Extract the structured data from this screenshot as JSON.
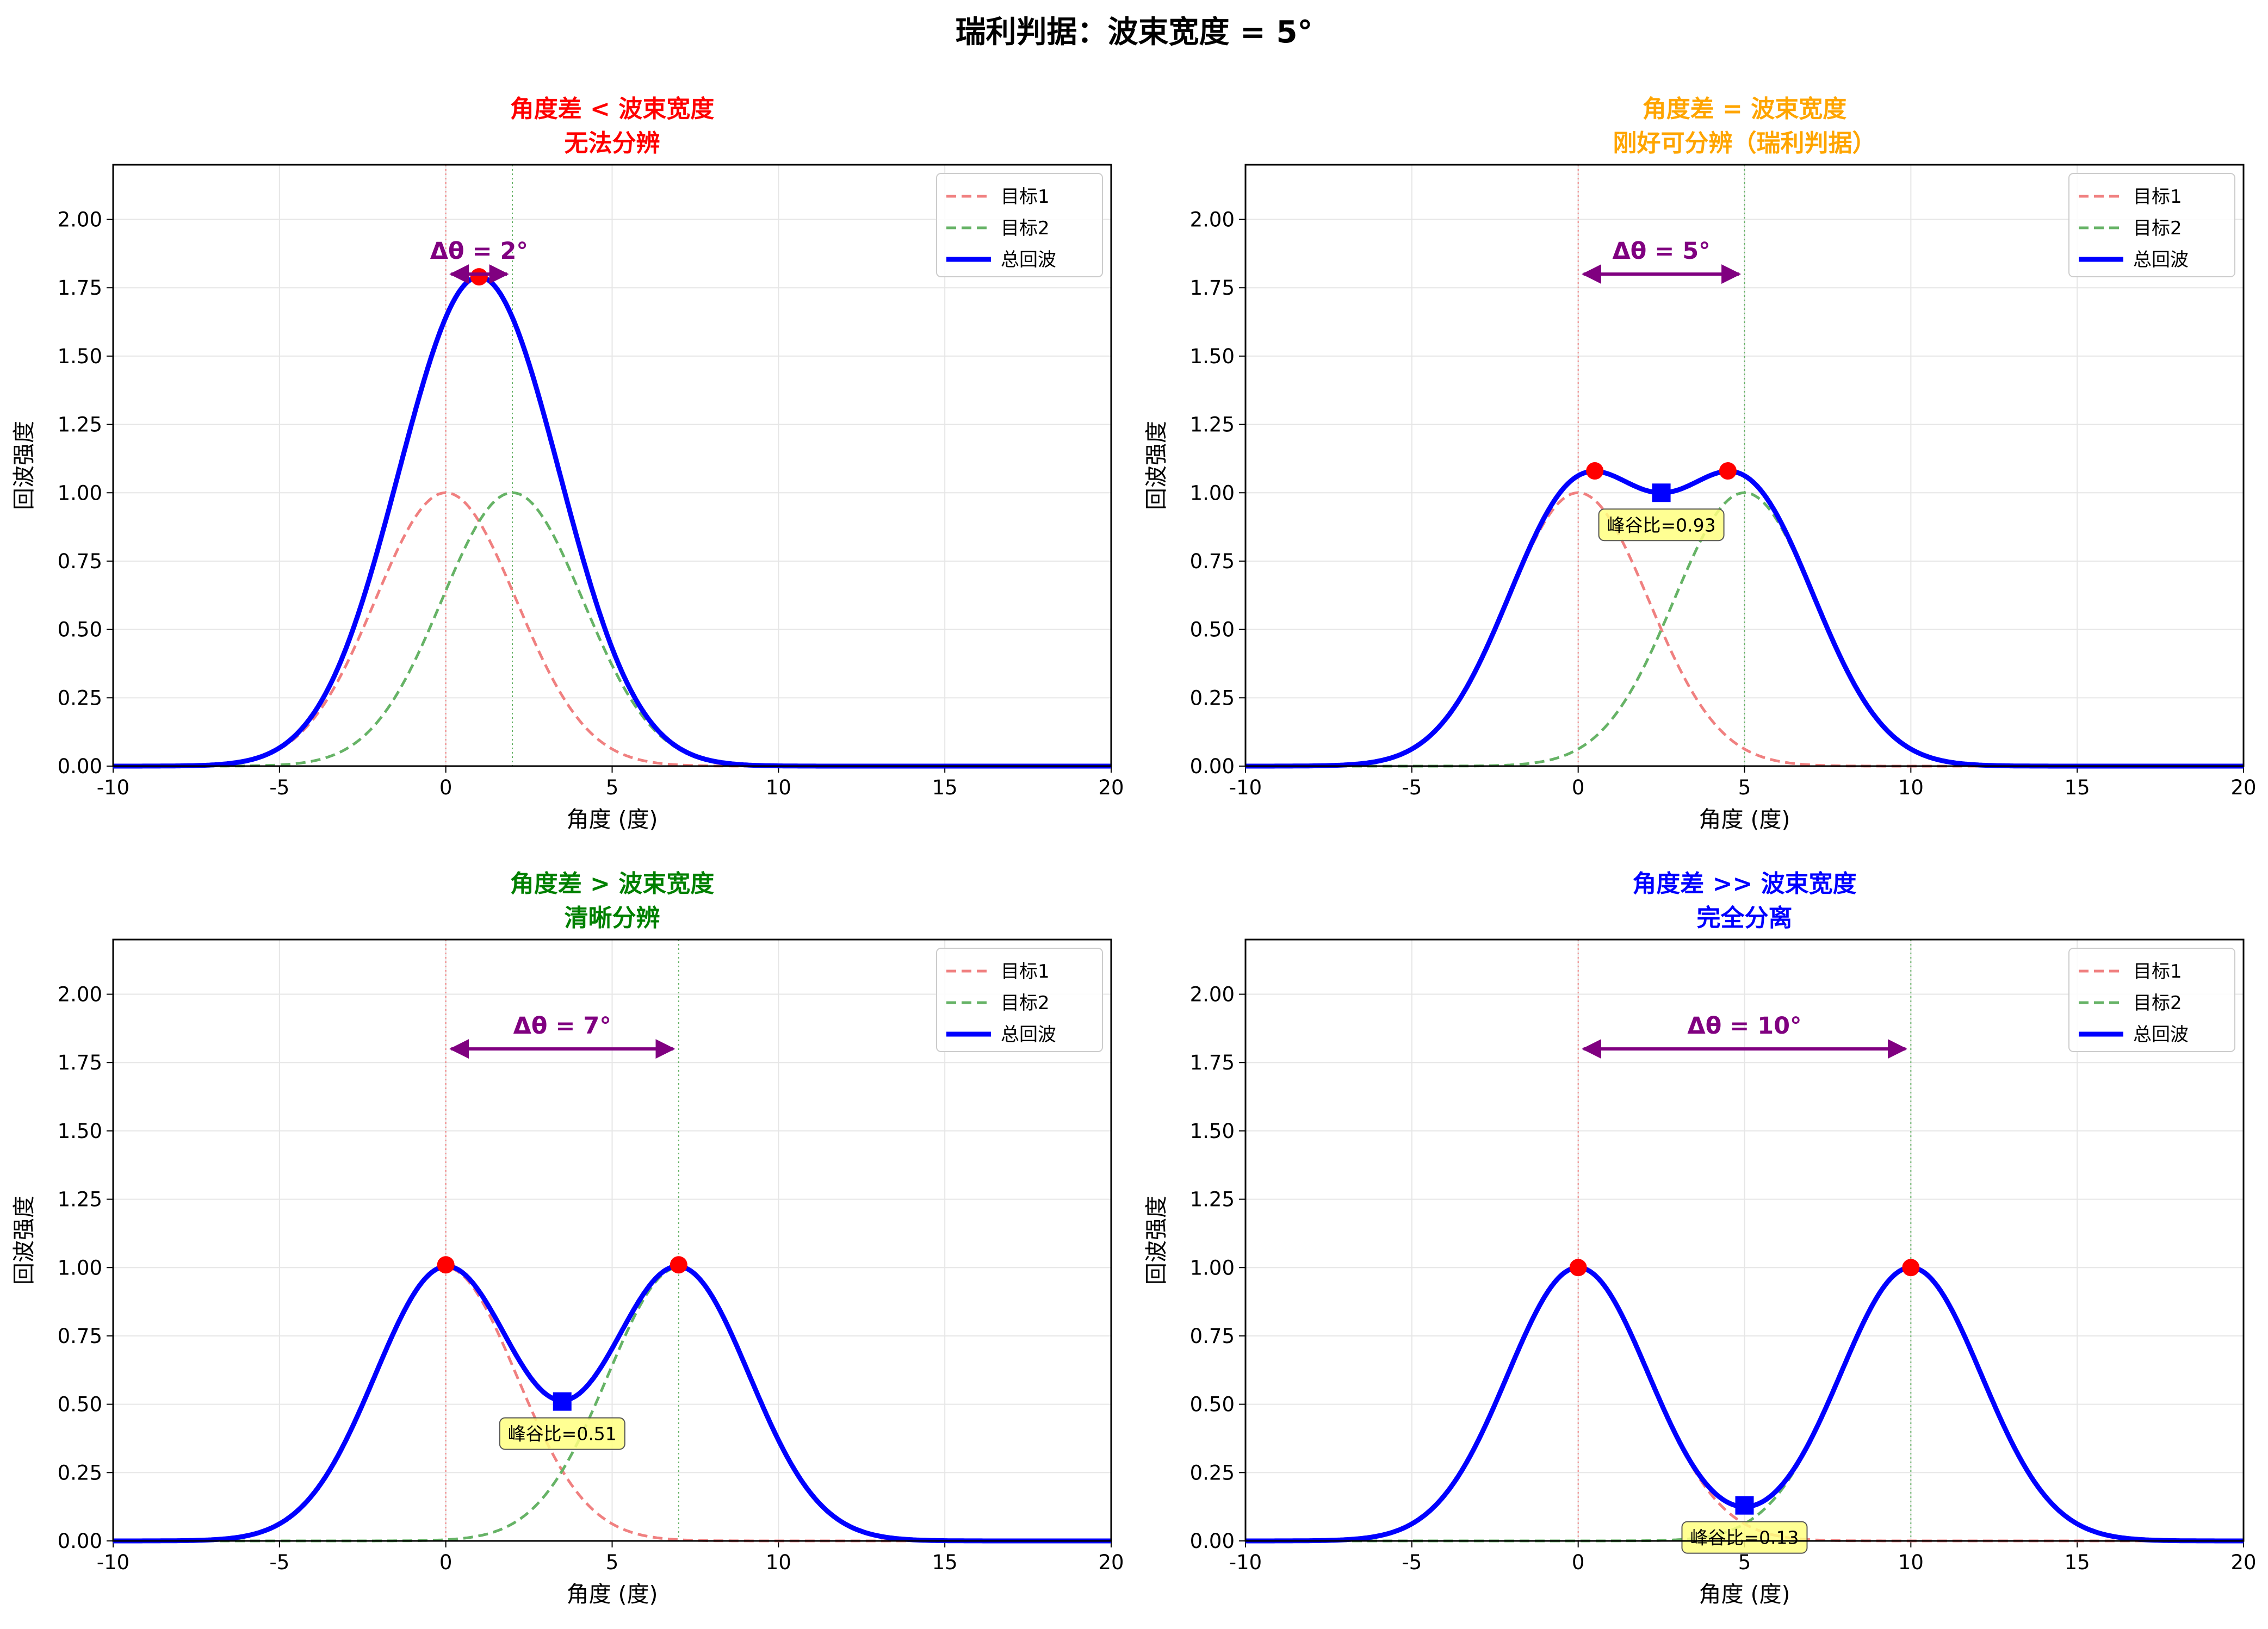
{
  "figure_title": "瑞利判据：波束宽度 = 5°",
  "colors": {
    "target1": "#f08080",
    "target2": "#66b366",
    "total": "#0000ff",
    "peak": "#ff0000",
    "valley": "#0000ff",
    "arrow": "#800080",
    "ratio_box": "#ffff80"
  },
  "chart_data": [
    {
      "type": "line",
      "title_line1": "角度差 < 波束宽度",
      "title_line2": "无法分辨",
      "title_color": "#ff0000",
      "xlabel": "角度 (度)",
      "ylabel": "回波强度",
      "xlim": [
        -10,
        20
      ],
      "ylim": [
        0,
        2.2
      ],
      "xticks": [
        "-10",
        "-5",
        "0",
        "5",
        "10",
        "15",
        "20"
      ],
      "yticks": [
        "0.00",
        "0.25",
        "0.50",
        "0.75",
        "1.00",
        "1.25",
        "1.50",
        "1.75",
        "2.00"
      ],
      "grid": true,
      "legend_position": "top-right",
      "legend": [
        "目标1",
        "目标2",
        "总回波"
      ],
      "target_positions": [
        0,
        2
      ],
      "beam_width": 5,
      "delta_label": "Δθ = 2°",
      "peaks": [
        [
          1,
          1.79
        ]
      ],
      "valley": null,
      "ratio_label": null
    },
    {
      "type": "line",
      "title_line1": "角度差 = 波束宽度",
      "title_line2": "刚好可分辨（瑞利判据）",
      "title_color": "#ffa500",
      "xlabel": "角度 (度)",
      "ylabel": "回波强度",
      "xlim": [
        -10,
        20
      ],
      "ylim": [
        0,
        2.2
      ],
      "xticks": [
        "-10",
        "-5",
        "0",
        "5",
        "10",
        "15",
        "20"
      ],
      "yticks": [
        "0.00",
        "0.25",
        "0.50",
        "0.75",
        "1.00",
        "1.25",
        "1.50",
        "1.75",
        "2.00"
      ],
      "grid": true,
      "legend_position": "top-right",
      "legend": [
        "目标1",
        "目标2",
        "总回波"
      ],
      "target_positions": [
        0,
        5
      ],
      "beam_width": 5,
      "delta_label": "Δθ = 5°",
      "peaks": [
        [
          0.5,
          1.08
        ],
        [
          4.5,
          1.08
        ]
      ],
      "valley": [
        2.5,
        1.0
      ],
      "ratio_label": "峰谷比=0.93"
    },
    {
      "type": "line",
      "title_line1": "角度差 > 波束宽度",
      "title_line2": "清晰分辨",
      "title_color": "#008000",
      "xlabel": "角度 (度)",
      "ylabel": "回波强度",
      "xlim": [
        -10,
        20
      ],
      "ylim": [
        0,
        2.2
      ],
      "xticks": [
        "-10",
        "-5",
        "0",
        "5",
        "10",
        "15",
        "20"
      ],
      "yticks": [
        "0.00",
        "0.25",
        "0.50",
        "0.75",
        "1.00",
        "1.25",
        "1.50",
        "1.75",
        "2.00"
      ],
      "grid": true,
      "legend_position": "top-right",
      "legend": [
        "目标1",
        "目标2",
        "总回波"
      ],
      "target_positions": [
        0,
        7
      ],
      "beam_width": 5,
      "delta_label": "Δθ = 7°",
      "peaks": [
        [
          0,
          1.01
        ],
        [
          7,
          1.01
        ]
      ],
      "valley": [
        3.5,
        0.51
      ],
      "ratio_label": "峰谷比=0.51"
    },
    {
      "type": "line",
      "title_line1": "角度差 >> 波束宽度",
      "title_line2": "完全分离",
      "title_color": "#0000ff",
      "xlabel": "角度 (度)",
      "ylabel": "回波强度",
      "xlim": [
        -10,
        20
      ],
      "ylim": [
        0,
        2.2
      ],
      "xticks": [
        "-10",
        "-5",
        "0",
        "5",
        "10",
        "15",
        "20"
      ],
      "yticks": [
        "0.00",
        "0.25",
        "0.50",
        "0.75",
        "1.00",
        "1.25",
        "1.50",
        "1.75",
        "2.00"
      ],
      "grid": true,
      "legend_position": "top-right",
      "legend": [
        "目标1",
        "目标2",
        "总回波"
      ],
      "target_positions": [
        0,
        10
      ],
      "beam_width": 5,
      "delta_label": "Δθ = 10°",
      "peaks": [
        [
          0,
          1.0
        ],
        [
          10,
          1.0
        ]
      ],
      "valley": [
        5,
        0.13
      ],
      "ratio_label": "峰谷比=0.13"
    }
  ]
}
